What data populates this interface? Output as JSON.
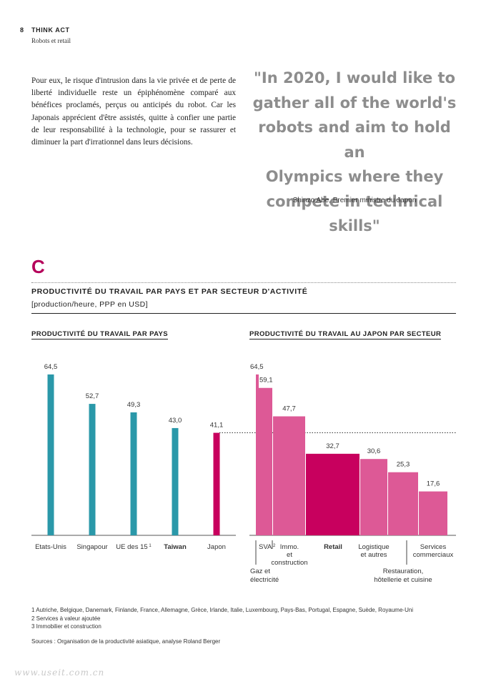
{
  "header": {
    "page_number": "8",
    "section": "THINK ACT",
    "subsection": "Robots et retail"
  },
  "body_text": "Pour eux, le risque d'intrusion dans la vie privée et de perte de liberté individuelle reste un épiphénomène comparé aux bénéfices proclamés, perçus ou anticipés du robot. Car les Japonais apprécient d'être assistés, quitte à confier une partie de leur responsabilité à la technologie, pour se rassurer et diminuer la part d'irrationnel dans leurs décisions.",
  "quote": {
    "lines": [
      "\"In 2020, I would like to",
      "gather all of the world's",
      "robots and aim to hold an",
      "Olympics where they",
      "compete in technical skills\""
    ],
    "attribution": "Shinzo Abe, Premier ministre du Japon"
  },
  "figure": {
    "letter": "C",
    "title": "PRODUCTIVITÉ DU TRAVAIL PAR PAYS ET PAR SECTEUR D'ACTIVITÉ",
    "subtitle": "[production/heure, PPP en USD]"
  },
  "colors": {
    "teal": "#2a98a9",
    "magenta": "#c8005e",
    "pink": "#dd5996",
    "quote_gray": "#8d8d8d",
    "accent_letter": "#b5005a"
  },
  "chart_data": [
    {
      "type": "bar",
      "title": "PRODUCTIVITÉ DU TRAVAIL PAR PAYS",
      "categories": [
        "Etats-Unis",
        "Singapour",
        "UE des 15",
        "Taiwan",
        "Japon"
      ],
      "category_superscripts": [
        "",
        "",
        "1",
        "",
        ""
      ],
      "values": [
        64.5,
        52.7,
        49.3,
        43.0,
        41.1
      ],
      "value_labels": [
        "64,5",
        "52,7",
        "49,3",
        "43,0",
        "41,1"
      ],
      "bold_categories": [
        "Taiwan"
      ],
      "highlight": "Japon",
      "reference_line": 41.1,
      "ylim": [
        0,
        70
      ],
      "grid": false
    },
    {
      "type": "bar",
      "title": "PRODUCTIVITÉ DU TRAVAIL AU JAPON PAR SECTEUR",
      "categories": [
        "Gaz et électricité",
        "SVA",
        "Immo. et construction",
        "Retail",
        "Logistique et autres",
        "Restauration, hôtellerie et cuisine",
        "Services commerciaux"
      ],
      "category_superscripts": [
        "",
        "2",
        "",
        "",
        "",
        "",
        ""
      ],
      "values": [
        64.5,
        59.1,
        47.7,
        32.7,
        30.6,
        25.3,
        17.6
      ],
      "value_labels": [
        "64,5",
        "59,1",
        "47,7",
        "32,7",
        "30,6",
        "25,3",
        "17,6"
      ],
      "bold_categories": [
        "Retail"
      ],
      "highlight": "Retail",
      "ylim": [
        0,
        70
      ],
      "grid": false
    }
  ],
  "footnotes": [
    "1  Autriche, Belgique, Danemark, Finlande, France, Allemagne, Grèce, Irlande, Italie, Luxembourg, Pays-Bas, Portugal, Espagne, Suède, Royaume-Uni",
    "2  Services à valeur ajoutée",
    "3  Immobilier et construction"
  ],
  "sources": "Sources : Organisation de la productivité asiatique, analyse Roland Berger",
  "watermark": "www.useit.com.cn"
}
